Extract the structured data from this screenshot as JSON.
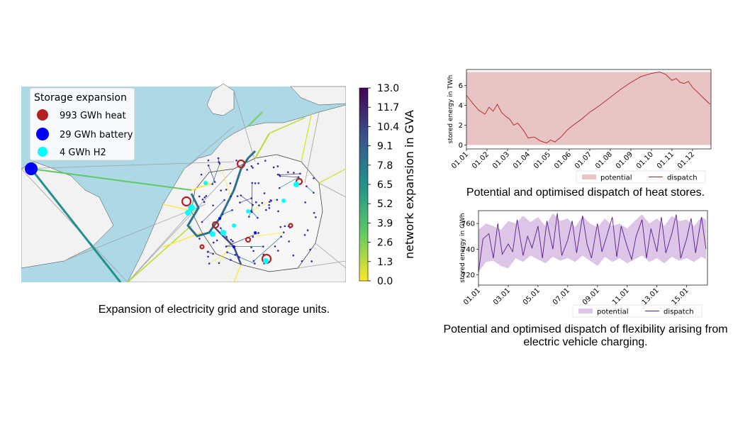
{
  "captions": {
    "map": "Expansion of electricity grid and storage units.",
    "heat": "Potential and optimised dispatch of heat stores.",
    "ev_line1": "Potential and optimised dispatch of flexibility arising from",
    "ev_line2": "electric vehicle charging."
  },
  "colors": {
    "sea": "#add8e6",
    "land": "#f2f2f2",
    "heat": "#b22222",
    "battery": "#0000ff",
    "h2": "#00ffff",
    "heat_fill": "#e9c4c4",
    "heat_line": "#b22222",
    "ev_fill": "#dcc5e6",
    "ev_line": "#5b1a8b"
  },
  "chart_data": [
    {
      "type": "map",
      "legend": {
        "title": "Storage expansion",
        "items": [
          {
            "label": "993 GWh heat",
            "color": "#b22222"
          },
          {
            "label": "29 GWh battery",
            "color": "#0000ff"
          },
          {
            "label": "4 GWh H2",
            "color": "#00ffff"
          }
        ]
      },
      "colorbar": {
        "label": "network expansion in GVA",
        "colormap": "viridis",
        "range": [
          0.0,
          13.0
        ],
        "ticks": [
          "0.0",
          "1.3",
          "2.6",
          "3.9",
          "5.2",
          "6.5",
          "7.8",
          "9.1",
          "10.4",
          "11.7",
          "13.0"
        ]
      }
    },
    {
      "type": "area",
      "ylabel": "stored energy in TWh",
      "xlabel": "",
      "ylim": [
        -0.4,
        7.6
      ],
      "yticks": [
        0,
        2,
        4,
        6
      ],
      "xticks": [
        "01.01",
        "01.02",
        "01.03",
        "01.04",
        "01.05",
        "01.06",
        "01.07",
        "01.08",
        "01.09",
        "01.10",
        "01.11",
        "01.12"
      ],
      "legend": [
        "potential",
        "dispatch"
      ],
      "series": [
        {
          "name": "potential",
          "kind": "band",
          "lower": 0.0,
          "upper": 7.35
        },
        {
          "name": "dispatch",
          "kind": "line",
          "x": [
            0,
            0.3,
            0.6,
            0.9,
            1.1,
            1.3,
            1.5,
            1.7,
            1.9,
            2.1,
            2.3,
            2.5,
            2.8,
            3.0,
            3.3,
            3.6,
            3.9,
            4.1,
            4.3,
            4.6,
            4.9,
            5.2,
            5.6,
            6.0,
            6.5,
            7.0,
            7.5,
            8.0,
            8.5,
            9.0,
            9.4,
            9.7,
            10.0,
            10.2,
            10.4,
            10.6,
            10.8,
            11.0,
            11.3,
            11.6,
            11.85
          ],
          "y": [
            5.0,
            4.2,
            3.5,
            3.1,
            3.8,
            3.4,
            4.1,
            3.3,
            2.9,
            2.6,
            2.0,
            2.2,
            1.4,
            0.7,
            0.8,
            0.4,
            0.2,
            0.5,
            0.3,
            0.8,
            1.5,
            2.0,
            2.6,
            3.3,
            4.0,
            4.8,
            5.6,
            6.3,
            6.9,
            7.2,
            7.35,
            7.1,
            6.5,
            6.7,
            6.3,
            6.2,
            6.4,
            5.8,
            5.2,
            4.6,
            4.1
          ]
        }
      ]
    },
    {
      "type": "area",
      "ylabel": "stored energy in GWh",
      "xlabel": "",
      "ylim": [
        712,
        770
      ],
      "yticks": [
        720,
        740,
        760
      ],
      "xticks": [
        "01.01",
        "03.01",
        "05.01",
        "07.01",
        "09.01",
        "11.01",
        "13.01",
        "15.01"
      ],
      "legend": [
        "potential",
        "dispatch"
      ],
      "series": [
        {
          "name": "potential",
          "kind": "band",
          "x": [
            0,
            0.5,
            1,
            1.5,
            2,
            2.5,
            3,
            3.5,
            4,
            4.5,
            5,
            5.5,
            6,
            6.5,
            7,
            7.5,
            8,
            8.5,
            9,
            9.5,
            10,
            10.5,
            11,
            11.5,
            12,
            12.5,
            13,
            13.5,
            14,
            14.5,
            15,
            15.3
          ],
          "lower": [
            722,
            730,
            731,
            727,
            725,
            733,
            730,
            735,
            732,
            729,
            734,
            731,
            733,
            730,
            735,
            731,
            727,
            734,
            730,
            733,
            729,
            732,
            735,
            730,
            733,
            729,
            734,
            731,
            733,
            730,
            734,
            732
          ],
          "upper": [
            755,
            760,
            758,
            755,
            762,
            760,
            766,
            761,
            765,
            758,
            768,
            762,
            764,
            757,
            766,
            760,
            757,
            764,
            758,
            760,
            756,
            762,
            767,
            760,
            764,
            758,
            766,
            762,
            763,
            758,
            765,
            763
          ]
        },
        {
          "name": "dispatch",
          "kind": "line",
          "x": [
            0,
            0.3,
            0.7,
            1.0,
            1.3,
            1.6,
            2.0,
            2.3,
            2.6,
            3.0,
            3.3,
            3.6,
            4.0,
            4.3,
            4.6,
            5.0,
            5.3,
            5.6,
            6.0,
            6.3,
            6.6,
            7.0,
            7.3,
            7.6,
            8.0,
            8.3,
            8.6,
            9.0,
            9.3,
            9.6,
            10.0,
            10.3,
            10.6,
            11.0,
            11.3,
            11.6,
            12.0,
            12.3,
            12.6,
            13.0,
            13.3,
            13.6,
            14.0,
            14.3,
            14.6,
            15.0,
            15.3
          ],
          "y": [
            722,
            748,
            752,
            733,
            760,
            736,
            744,
            738,
            763,
            735,
            750,
            741,
            758,
            733,
            762,
            740,
            768,
            735,
            747,
            762,
            737,
            766,
            744,
            733,
            760,
            738,
            749,
            765,
            734,
            758,
            742,
            732,
            750,
            763,
            733,
            756,
            738,
            765,
            737,
            752,
            767,
            733,
            748,
            764,
            737,
            765,
            740
          ]
        }
      ]
    }
  ]
}
